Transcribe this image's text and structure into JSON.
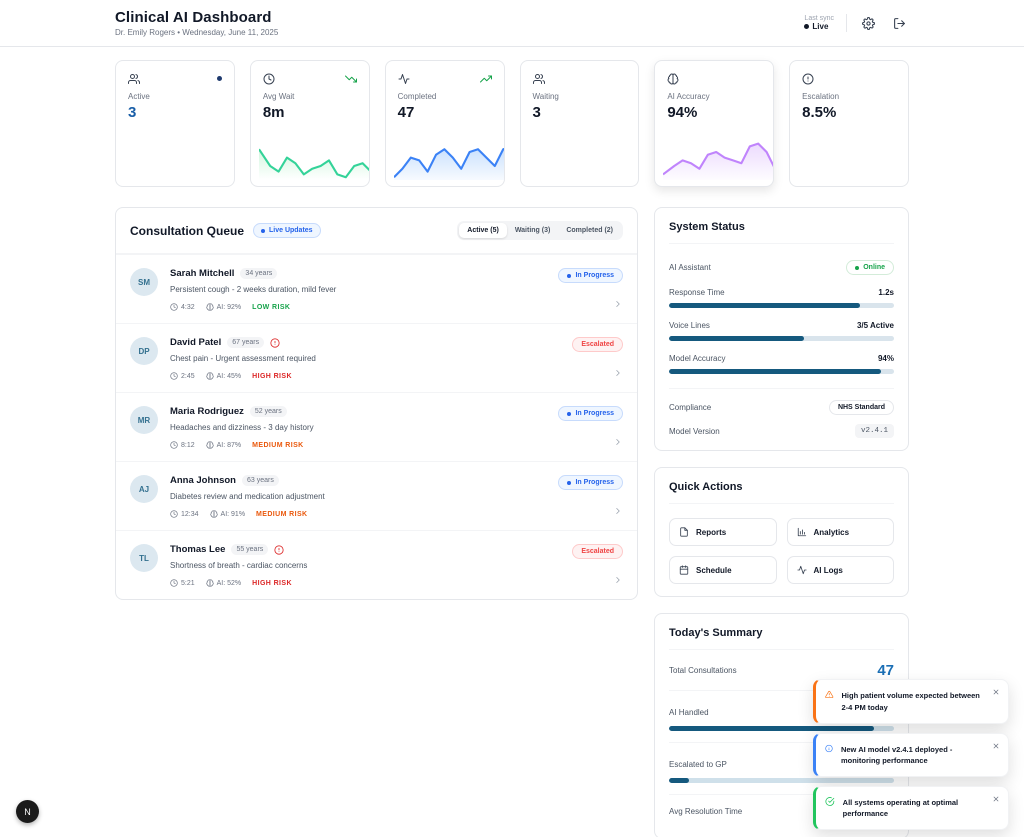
{
  "header": {
    "title": "Clinical AI Dashboard",
    "subtitle": "Dr. Emily Rogers • Wednesday, June 11, 2025",
    "last_sync_label": "Last sync",
    "live_label": "Live"
  },
  "stats": [
    {
      "label": "Active",
      "value": "3",
      "icon": "users-icon",
      "value_color": "#1a5fa8"
    },
    {
      "label": "Avg Wait",
      "value": "8m",
      "icon": "clock-icon",
      "trend": "down",
      "spark_color": "#4ade80"
    },
    {
      "label": "Completed",
      "value": "47",
      "icon": "activity-icon",
      "trend": "up",
      "spark_color": "#60a5fa"
    },
    {
      "label": "Waiting",
      "value": "3",
      "icon": "users-icon"
    },
    {
      "label": "AI Accuracy",
      "value": "94%",
      "icon": "brain-icon",
      "spark_color": "#c084fc"
    },
    {
      "label": "Escalation",
      "value": "8.5%",
      "icon": "alert-circle-icon"
    }
  ],
  "queue": {
    "title": "Consultation Queue",
    "live_badge": "Live Updates",
    "tabs": [
      {
        "label": "Active (5)",
        "active": true
      },
      {
        "label": "Waiting (3)",
        "active": false
      },
      {
        "label": "Completed (2)",
        "active": false
      }
    ],
    "patients": [
      {
        "initials": "SM",
        "name": "Sarah Mitchell",
        "age": "34 years",
        "alert": false,
        "description": "Persistent cough - 2 weeks duration, mild fever",
        "time": "4:32",
        "ai": "AI: 92%",
        "risk": "LOW RISK",
        "risk_color": "#16a34a",
        "status": "In Progress",
        "status_type": "progress"
      },
      {
        "initials": "DP",
        "name": "David Patel",
        "age": "67 years",
        "alert": true,
        "description": "Chest pain - Urgent assessment required",
        "time": "2:45",
        "ai": "AI: 45%",
        "risk": "HIGH RISK",
        "risk_color": "#dc2626",
        "status": "Escalated",
        "status_type": "escalated"
      },
      {
        "initials": "MR",
        "name": "Maria Rodriguez",
        "age": "52 years",
        "alert": false,
        "description": "Headaches and dizziness - 3 day history",
        "time": "8:12",
        "ai": "AI: 87%",
        "risk": "MEDIUM RISK",
        "risk_color": "#ea580c",
        "status": "In Progress",
        "status_type": "progress"
      },
      {
        "initials": "AJ",
        "name": "Anna Johnson",
        "age": "63 years",
        "alert": false,
        "description": "Diabetes review and medication adjustment",
        "time": "12:34",
        "ai": "AI: 91%",
        "risk": "MEDIUM RISK",
        "risk_color": "#ea580c",
        "status": "In Progress",
        "status_type": "progress"
      },
      {
        "initials": "TL",
        "name": "Thomas Lee",
        "age": "55 years",
        "alert": true,
        "description": "Shortness of breath - cardiac concerns",
        "time": "5:21",
        "ai": "AI: 52%",
        "risk": "HIGH RISK",
        "risk_color": "#dc2626",
        "status": "Escalated",
        "status_type": "escalated"
      }
    ]
  },
  "system_status": {
    "title": "System Status",
    "ai_assistant_label": "AI Assistant",
    "ai_assistant_value": "Online",
    "bars": [
      {
        "label": "Response Time",
        "value": "1.2s",
        "percent": 85
      },
      {
        "label": "Voice Lines",
        "value": "3/5 Active",
        "percent": 60
      },
      {
        "label": "Model Accuracy",
        "value": "94%",
        "percent": 94
      }
    ],
    "compliance_label": "Compliance",
    "compliance_value": "NHS Standard",
    "version_label": "Model Version",
    "version_value": "v2.4.1"
  },
  "quick_actions": {
    "title": "Quick Actions",
    "actions": [
      {
        "label": "Reports",
        "icon": "file-icon"
      },
      {
        "label": "Analytics",
        "icon": "bar-chart-icon"
      },
      {
        "label": "Schedule",
        "icon": "calendar-icon"
      },
      {
        "label": "AI Logs",
        "icon": "activity-icon"
      }
    ]
  },
  "summary": {
    "title": "Today's Summary",
    "total_label": "Total Consultations",
    "total_value": "47",
    "bars": [
      {
        "label": "AI Handled",
        "percent": 91
      },
      {
        "label": "Escalated to GP",
        "percent": 9
      }
    ],
    "resolution_label": "Avg Resolution Time"
  },
  "toasts": [
    {
      "type": "warning",
      "message": "High patient volume expected between 2-4 PM today",
      "color": "#f97316"
    },
    {
      "type": "info",
      "message": "New AI model v2.4.1 deployed - monitoring performance",
      "color": "#3b82f6"
    },
    {
      "type": "success",
      "message": "All systems operating at optimal performance",
      "color": "#22c55e"
    }
  ],
  "dev_badge": "N",
  "colors": {
    "accent_blue": "#2563eb",
    "stat_blue": "#1a5fa8",
    "summary_blue": "#1b6fb5",
    "progress_bar": "#15597e",
    "risk_low": "#16a34a",
    "risk_medium": "#ea580c",
    "risk_high": "#dc2626",
    "spark_green": "#4ade80",
    "spark_blue": "#60a5fa",
    "spark_purple": "#c084fc",
    "toast_warning": "#f97316",
    "toast_info": "#3b82f6",
    "toast_success": "#22c55e"
  }
}
